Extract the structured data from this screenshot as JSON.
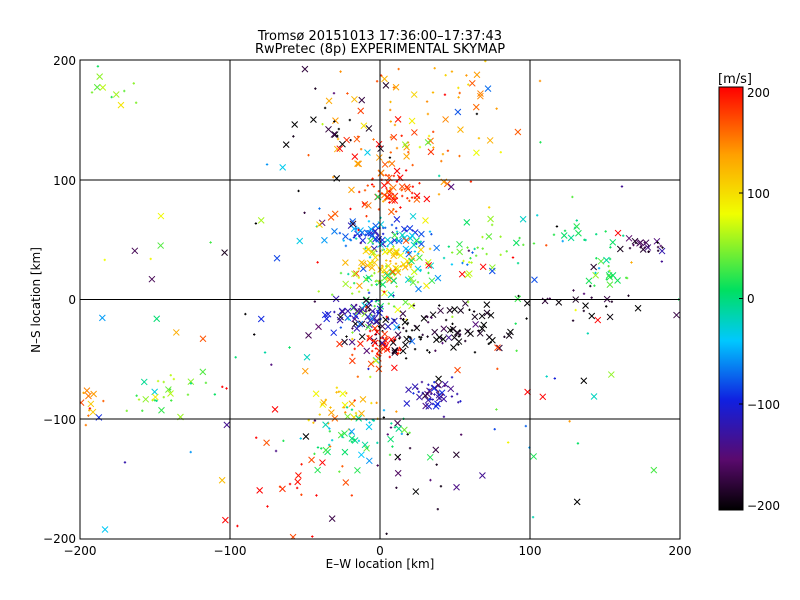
{
  "chart_data": {
    "type": "scatter",
    "title": "Tromsø 20151013 17:36:00–17:37:43",
    "subtitle": "RwPretec (8p) EXPERIMENTAL SKYMAP",
    "xlabel": "E–W location [km]",
    "ylabel": "N–S location [km]",
    "xlim": [
      -200,
      200
    ],
    "ylim": [
      -200,
      200
    ],
    "xticks": [
      "−200",
      "−100",
      "0",
      "100",
      "200"
    ],
    "yticks": [
      "−200",
      "−100",
      "0",
      "100",
      "200"
    ],
    "grid": true,
    "markers": [
      "x",
      "+"
    ],
    "colorbar": {
      "label": "[m/s]",
      "range": [
        -200,
        200
      ],
      "ticks": [
        "−200",
        "−100",
        "0",
        "100",
        "200"
      ],
      "colormap": "rainbow (black–purple–blue–cyan–green–yellow–orange–red)",
      "stops": [
        "#000000",
        "#5a0a6e",
        "#1020e0",
        "#00c8ff",
        "#00e060",
        "#f0ff00",
        "#ffa000",
        "#ff0000"
      ]
    },
    "clusters": [
      {
        "x": 5,
        "y": 90,
        "sx": 10,
        "sy": 9,
        "v": 180,
        "n": 70,
        "note": "red cluster north of centre"
      },
      {
        "x": 5,
        "y": 140,
        "sx": 28,
        "sy": 30,
        "v": 150,
        "n": 60
      },
      {
        "x": 50,
        "y": 175,
        "sx": 25,
        "sy": 25,
        "v": 140,
        "n": 35
      },
      {
        "x": 0,
        "y": 55,
        "sx": 14,
        "sy": 6,
        "v": -90,
        "n": 60
      },
      {
        "x": 15,
        "y": 45,
        "sx": 25,
        "sy": 12,
        "v": -30,
        "n": 50
      },
      {
        "x": 5,
        "y": 30,
        "sx": 12,
        "sy": 10,
        "v": 110,
        "n": 60
      },
      {
        "x": 0,
        "y": 10,
        "sx": 12,
        "sy": 14,
        "v": 40,
        "n": 60
      },
      {
        "x": 30,
        "y": -25,
        "sx": 30,
        "sy": 10,
        "v": -200,
        "n": 110,
        "note": "black cluster east of centre"
      },
      {
        "x": -10,
        "y": -12,
        "sx": 15,
        "sy": 8,
        "v": -120,
        "n": 50
      },
      {
        "x": 0,
        "y": -38,
        "sx": 8,
        "sy": 8,
        "v": 190,
        "n": 45
      },
      {
        "x": 35,
        "y": -80,
        "sx": 8,
        "sy": 7,
        "v": -120,
        "n": 45,
        "note": "blue cluster south-east"
      },
      {
        "x": -25,
        "y": -90,
        "sx": 12,
        "sy": 12,
        "v": 120,
        "n": 30
      },
      {
        "x": -5,
        "y": -115,
        "sx": 20,
        "sy": 12,
        "v": 0,
        "n": 50
      },
      {
        "x": 177,
        "y": 45,
        "sx": 8,
        "sy": 3,
        "v": -170,
        "n": 25
      },
      {
        "x": 155,
        "y": 22,
        "sx": 10,
        "sy": 6,
        "v": 20,
        "n": 20
      },
      {
        "x": 130,
        "y": 55,
        "sx": 15,
        "sy": 8,
        "v": 10,
        "n": 20
      },
      {
        "x": 130,
        "y": 0,
        "sx": 25,
        "sy": 10,
        "v": -200,
        "n": 25
      },
      {
        "x": -145,
        "y": -80,
        "sx": 15,
        "sy": 10,
        "v": 30,
        "n": 25
      },
      {
        "x": -180,
        "y": 180,
        "sx": 12,
        "sy": 12,
        "v": 40,
        "n": 10
      },
      {
        "x": -195,
        "y": -85,
        "sx": 5,
        "sy": 10,
        "v": 150,
        "n": 12
      },
      {
        "x": -30,
        "y": 140,
        "sx": 20,
        "sy": 20,
        "v": -200,
        "n": 25
      },
      {
        "x": 20,
        "y": -140,
        "sx": 25,
        "sy": 25,
        "v": -180,
        "n": 25
      },
      {
        "x": -50,
        "y": -160,
        "sx": 30,
        "sy": 25,
        "v": 190,
        "n": 25
      },
      {
        "x": 70,
        "y": 40,
        "sx": 20,
        "sy": 15,
        "v": 50,
        "n": 30
      },
      {
        "x": 0,
        "y": 0,
        "sx": 90,
        "sy": 90,
        "v": 0,
        "vs": 150,
        "n": 160,
        "note": "scattered background points"
      }
    ]
  }
}
